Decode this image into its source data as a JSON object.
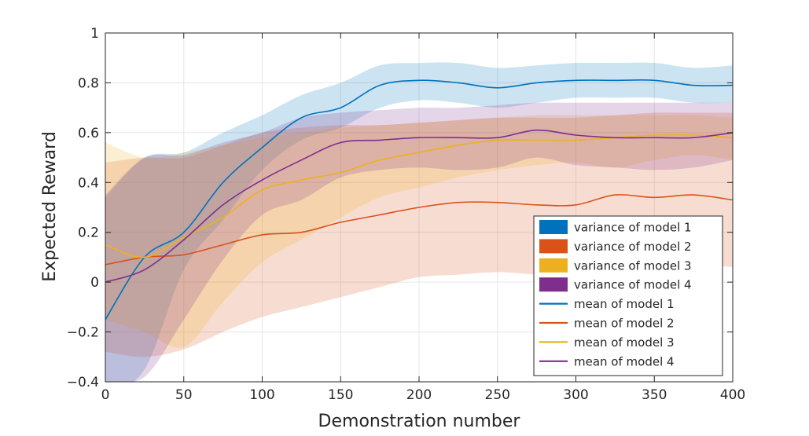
{
  "chart_data": {
    "type": "line",
    "title": "",
    "xlabel": "Demonstration number",
    "ylabel": "Expected Reward",
    "xlim": [
      0,
      400
    ],
    "ylim": [
      -0.4,
      1
    ],
    "xticks": [
      0,
      50,
      100,
      150,
      200,
      250,
      300,
      350,
      400
    ],
    "yticks": [
      -0.4,
      -0.2,
      0,
      0.2,
      0.4,
      0.6,
      0.8,
      1
    ],
    "xtick_labels": [
      "0",
      "50",
      "100",
      "150",
      "200",
      "250",
      "300",
      "350",
      "400"
    ],
    "ytick_labels": [
      "−0.4",
      "−0.2",
      "0",
      "0.2",
      "0.4",
      "0.6",
      "0.8",
      "1"
    ],
    "grid": true,
    "legend_position": "lower-right",
    "x": [
      0,
      25,
      50,
      75,
      100,
      125,
      150,
      175,
      200,
      225,
      250,
      275,
      300,
      325,
      350,
      375,
      400
    ],
    "series": [
      {
        "color": "#0072BD",
        "mean_label": "mean of model 1",
        "band_label": "variance of model 1",
        "mean": [
          -0.15,
          0.1,
          0.2,
          0.4,
          0.54,
          0.66,
          0.7,
          0.79,
          0.81,
          0.8,
          0.78,
          0.8,
          0.81,
          0.81,
          0.81,
          0.79,
          0.79
        ],
        "upper": [
          0.34,
          0.5,
          0.52,
          0.6,
          0.67,
          0.75,
          0.8,
          0.87,
          0.88,
          0.88,
          0.86,
          0.87,
          0.88,
          0.88,
          0.88,
          0.86,
          0.87
        ],
        "lower": [
          -0.45,
          -0.35,
          0.05,
          0.25,
          0.45,
          0.57,
          0.62,
          0.7,
          0.73,
          0.72,
          0.7,
          0.72,
          0.74,
          0.74,
          0.74,
          0.72,
          0.72
        ]
      },
      {
        "color": "#D95319",
        "mean_label": "mean of model 2",
        "band_label": "variance of model 2",
        "mean": [
          0.07,
          0.1,
          0.11,
          0.15,
          0.19,
          0.2,
          0.24,
          0.27,
          0.3,
          0.32,
          0.32,
          0.31,
          0.31,
          0.35,
          0.34,
          0.35,
          0.33
        ],
        "upper": [
          0.48,
          0.5,
          0.5,
          0.55,
          0.6,
          0.62,
          0.63,
          0.63,
          0.64,
          0.65,
          0.66,
          0.66,
          0.66,
          0.67,
          0.68,
          0.68,
          0.68
        ],
        "lower": [
          -0.28,
          -0.3,
          -0.27,
          -0.2,
          -0.14,
          -0.1,
          -0.06,
          -0.02,
          0.02,
          0.03,
          0.04,
          0.03,
          0.02,
          0.03,
          0.05,
          0.07,
          0.06
        ]
      },
      {
        "color": "#EDB120",
        "mean_label": "mean of model 3",
        "band_label": "variance of model 3",
        "mean": [
          0.15,
          0.1,
          0.18,
          0.26,
          0.37,
          0.41,
          0.44,
          0.49,
          0.52,
          0.55,
          0.57,
          0.57,
          0.57,
          0.58,
          0.59,
          0.59,
          0.58
        ],
        "upper": [
          0.56,
          0.5,
          0.52,
          0.55,
          0.58,
          0.6,
          0.62,
          0.63,
          0.64,
          0.65,
          0.66,
          0.67,
          0.67,
          0.67,
          0.67,
          0.67,
          0.66
        ],
        "lower": [
          -0.15,
          -0.2,
          -0.26,
          -0.08,
          0.08,
          0.17,
          0.26,
          0.34,
          0.38,
          0.42,
          0.45,
          0.47,
          0.48,
          0.46,
          0.49,
          0.51,
          0.49
        ]
      },
      {
        "color": "#7E2F8E",
        "mean_label": "mean of model 4",
        "band_label": "variance of model 4",
        "mean": [
          0.0,
          0.05,
          0.17,
          0.31,
          0.41,
          0.49,
          0.56,
          0.57,
          0.58,
          0.58,
          0.58,
          0.61,
          0.59,
          0.58,
          0.58,
          0.58,
          0.6
        ],
        "upper": [
          0.35,
          0.5,
          0.51,
          0.56,
          0.6,
          0.66,
          0.68,
          0.69,
          0.7,
          0.7,
          0.71,
          0.72,
          0.72,
          0.72,
          0.72,
          0.72,
          0.72
        ],
        "lower": [
          -0.4,
          -0.38,
          -0.15,
          0.09,
          0.27,
          0.33,
          0.42,
          0.45,
          0.46,
          0.45,
          0.46,
          0.5,
          0.47,
          0.46,
          0.45,
          0.46,
          0.49
        ]
      }
    ]
  }
}
